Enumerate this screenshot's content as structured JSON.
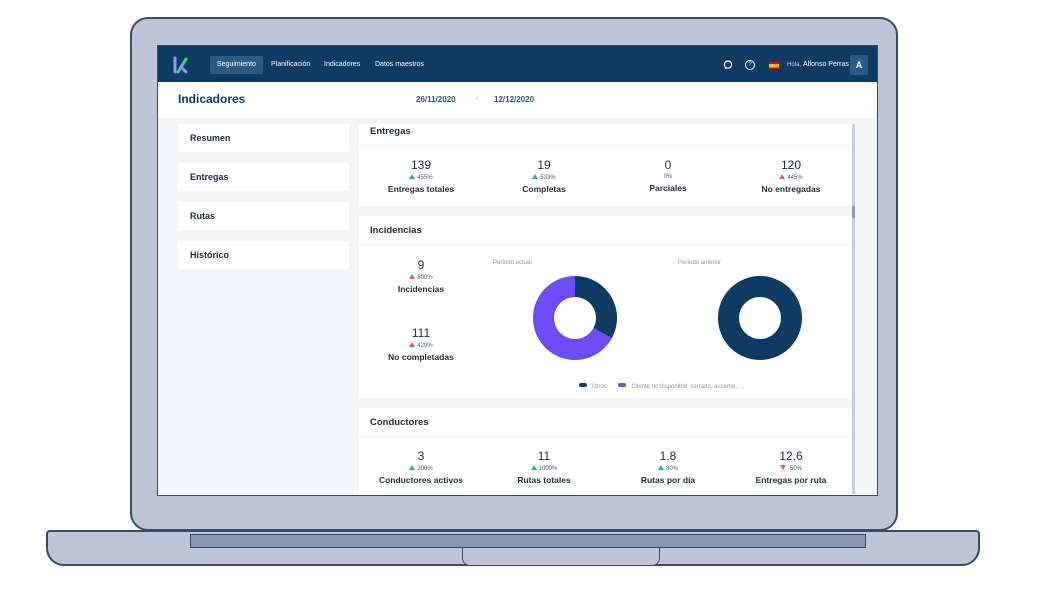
{
  "nav": {
    "items": [
      {
        "label": "Seguimiento",
        "active": true
      },
      {
        "label": "Planificación",
        "active": false
      },
      {
        "label": "Indicadores",
        "active": false
      },
      {
        "label": "Datos maestros",
        "active": false
      }
    ],
    "greeting": "Hola,",
    "user_name": "Alfonso Perras",
    "avatar_initial": "A",
    "icons": [
      "chat-icon",
      "help-icon",
      "flag-spain-icon"
    ]
  },
  "header": {
    "title": "Indicadores",
    "date_from": "26/11/2020",
    "date_separator": "-",
    "date_to": "12/12/2020"
  },
  "sidebar": {
    "items": [
      {
        "label": "Resumen"
      },
      {
        "label": "Entregas"
      },
      {
        "label": "Rutas"
      },
      {
        "label": "Histórico"
      }
    ]
  },
  "entregas": {
    "title": "Entregas",
    "metrics": [
      {
        "value": "139",
        "change": "455%",
        "trend": "up-green",
        "label": "Entregas totales"
      },
      {
        "value": "19",
        "change": "533%",
        "trend": "up-green",
        "label": "Completas"
      },
      {
        "value": "0",
        "change": "0%",
        "trend": "none",
        "label": "Parciales"
      },
      {
        "value": "120",
        "change": "445%",
        "trend": "up-red",
        "label": "No entregadas"
      }
    ]
  },
  "incidencias": {
    "title": "Incidencias",
    "metrics": [
      {
        "value": "9",
        "change": "800%",
        "trend": "up-red",
        "label": "Incidencias"
      },
      {
        "value": "111",
        "change": "429%",
        "trend": "up-red",
        "label": "No completadas"
      }
    ],
    "period_current": "Período actual",
    "period_previous": "Período anterior",
    "legend": [
      {
        "label": "Otros",
        "color": "#0d3b62"
      },
      {
        "label": "Cliente no disponible: cerrado, ausente, ...",
        "color": "#6c4cf5"
      }
    ]
  },
  "chart_data": [
    {
      "type": "pie",
      "title": "Período actual",
      "categories": [
        "Otros",
        "Cliente no disponible: cerrado, ausente, ..."
      ],
      "values": [
        33,
        67
      ],
      "colors": [
        "#0d3b62",
        "#6c4cf5"
      ]
    },
    {
      "type": "pie",
      "title": "Período anterior",
      "categories": [
        "Otros",
        "Cliente no disponible: cerrado, ausente, ..."
      ],
      "values": [
        100,
        0
      ],
      "colors": [
        "#0d3b62",
        "#6c4cf5"
      ]
    }
  ],
  "conductores": {
    "title": "Conductores",
    "metrics": [
      {
        "value": "3",
        "change": "200%",
        "trend": "up-green",
        "label": "Conductores activos"
      },
      {
        "value": "11",
        "change": "1000%",
        "trend": "up-green",
        "label": "Rutas totales"
      },
      {
        "value": "1.8",
        "change": "80%",
        "trend": "up-green",
        "label": "Rutas por día"
      },
      {
        "value": "12.6",
        "change": "-50%",
        "trend": "down-red",
        "label": "Entregas por ruta"
      }
    ]
  }
}
